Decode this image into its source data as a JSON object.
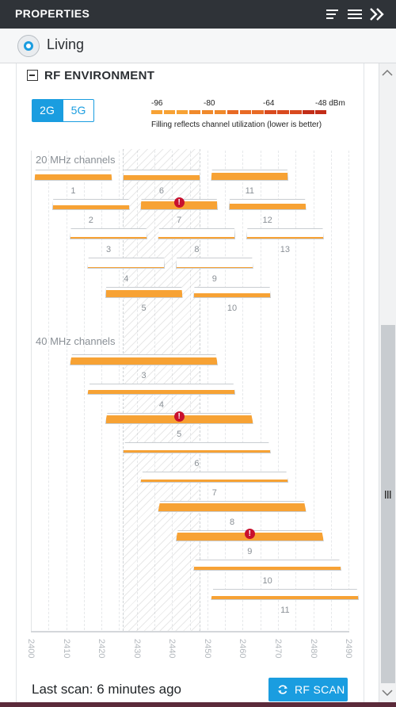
{
  "header": {
    "title": "PROPERTIES",
    "icons": [
      "sort-icon",
      "menu-icon",
      "collapse-icon"
    ]
  },
  "device": {
    "name": "Living",
    "selected": true
  },
  "section": {
    "title": "RF ENVIRONMENT",
    "expanded": true
  },
  "band_toggle": {
    "options": [
      "2G",
      "5G"
    ],
    "selected": "2G"
  },
  "legend": {
    "scale_labels": [
      "-96",
      "-80",
      "-64",
      "-48 dBm"
    ],
    "note": "Filling reflects channel utilization (lower is better)",
    "colors": [
      "#f7a234",
      "#f08a2c",
      "#e86a25",
      "#d94a1f",
      "#c22d18"
    ]
  },
  "chart_data": [
    {
      "type": "bar",
      "title": "20 MHz channels",
      "x_axis_range": [
        2400,
        2490
      ],
      "busy_range": [
        2425,
        2447
      ],
      "channels": [
        {
          "channel": "1",
          "utilization": 0.55,
          "warning": false
        },
        {
          "channel": "2",
          "utilization": 0.45,
          "warning": false
        },
        {
          "channel": "3",
          "utilization": 0.2,
          "warning": false
        },
        {
          "channel": "4",
          "utilization": 0.1,
          "warning": false
        },
        {
          "channel": "5",
          "utilization": 0.75,
          "warning": false
        },
        {
          "channel": "6",
          "utilization": 0.5,
          "warning": false
        },
        {
          "channel": "7",
          "utilization": 0.85,
          "warning": true
        },
        {
          "channel": "8",
          "utilization": 0.2,
          "warning": false
        },
        {
          "channel": "9",
          "utilization": 0.1,
          "warning": false
        },
        {
          "channel": "10",
          "utilization": 0.45,
          "warning": false
        },
        {
          "channel": "11",
          "utilization": 0.75,
          "warning": false
        },
        {
          "channel": "12",
          "utilization": 0.55,
          "warning": false
        },
        {
          "channel": "13",
          "utilization": 0.2,
          "warning": false
        }
      ]
    },
    {
      "type": "bar",
      "title": "40 MHz channels",
      "x_axis_range": [
        2400,
        2490
      ],
      "channels": [
        {
          "channel": "3",
          "utilization": 0.75,
          "warning": false
        },
        {
          "channel": "4",
          "utilization": 0.45,
          "warning": false
        },
        {
          "channel": "5",
          "utilization": 0.85,
          "warning": true
        },
        {
          "channel": "6",
          "utilization": 0.25,
          "warning": false
        },
        {
          "channel": "7",
          "utilization": 0.25,
          "warning": false
        },
        {
          "channel": "8",
          "utilization": 0.85,
          "warning": false
        },
        {
          "channel": "9",
          "utilization": 0.85,
          "warning": true
        },
        {
          "channel": "10",
          "utilization": 0.3,
          "warning": false
        },
        {
          "channel": "11",
          "utilization": 0.3,
          "warning": false
        }
      ]
    }
  ],
  "x_ticks": [
    "2400",
    "2410",
    "2420",
    "2430",
    "2440",
    "2450",
    "2460",
    "2470",
    "2480",
    "2490"
  ],
  "footer": {
    "last_scan": "Last scan: 6 minutes ago",
    "scan_button": "RF SCAN"
  }
}
